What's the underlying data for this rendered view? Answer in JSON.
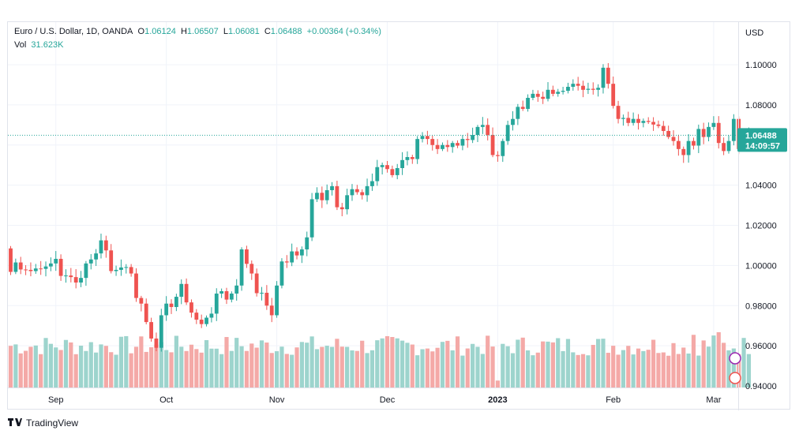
{
  "legend": {
    "symbol": "Euro / U.S. Dollar, 1D, OANDA",
    "o_label": "O",
    "o_value": "1.06124",
    "h_label": "H",
    "h_value": "1.06507",
    "l_label": "L",
    "l_value": "1.06081",
    "c_label": "C",
    "c_value": "1.06488",
    "change": "+0.00364 (+0.34%)",
    "vol_label": "Vol",
    "vol_value": "31.623K"
  },
  "price_scale": {
    "currency": "USD",
    "last_price": "1.06488",
    "countdown": "14:09:57"
  },
  "footer": {
    "brand": "TradingView"
  },
  "colors": {
    "up": "#26a69a",
    "down": "#ef5350",
    "up_vol": "#9dd4cd",
    "down_vol": "#f4a9a7",
    "grid": "#f0f3fa"
  },
  "chart_data": {
    "type": "candlestick",
    "title": "Euro / U.S. Dollar, 1D, OANDA",
    "ylabel": "USD",
    "ylim": [
      0.94,
      1.11
    ],
    "y_ticks": [
      "1.10000",
      "1.08000",
      "1.06000",
      "1.04000",
      "1.02000",
      "1.00000",
      "0.98000",
      "0.96000",
      "0.94000"
    ],
    "x_ticks": [
      {
        "label": "Sep",
        "index": 9
      },
      {
        "label": "Oct",
        "index": 31
      },
      {
        "label": "Nov",
        "index": 53
      },
      {
        "label": "Dec",
        "index": 75
      },
      {
        "label": "2023",
        "index": 97
      },
      {
        "label": "Feb",
        "index": 120
      },
      {
        "label": "Mar",
        "index": 140
      }
    ],
    "last_price": 1.06488,
    "volume_range": [
      0,
      120
    ],
    "close": [
      0.9968,
      1.0015,
      0.998,
      0.9978,
      0.9972,
      0.9985,
      0.9983,
      0.9995,
      1.001,
      1.0033,
      0.9948,
      0.995,
      0.9942,
      0.9915,
      0.9938,
      1.001,
      1.003,
      1.006,
      1.0125,
      1.0075,
      0.9972,
      0.9978,
      0.999,
      0.9992,
      0.996,
      0.9838,
      0.981,
      0.9718,
      0.9636,
      0.959,
      0.9752,
      0.981,
      0.9793,
      0.9844,
      0.9908,
      0.9816,
      0.9765,
      0.973,
      0.9708,
      0.974,
      0.976,
      0.986,
      0.9872,
      0.983,
      0.986,
      0.99,
      1.008,
      1.0008,
      0.996,
      0.9862,
      0.9864,
      0.98,
      0.9752,
      0.99,
      1.002,
      1.0015,
      1.007,
      1.005,
      1.008,
      1.014,
      1.033,
      1.0362,
      1.0325,
      1.0375,
      1.0395,
      1.029,
      1.028,
      1.035,
      1.038,
      1.0365,
      1.035,
      1.0395,
      1.042,
      1.049,
      1.05,
      1.048,
      1.045,
      1.0485,
      1.0525,
      1.054,
      1.053,
      1.063,
      1.0645,
      1.063,
      1.06,
      1.058,
      1.06,
      1.059,
      1.061,
      1.0597,
      1.063,
      1.0625,
      1.065,
      1.069,
      1.07,
      1.065,
      1.055,
      1.0545,
      1.062,
      1.07,
      1.073,
      1.079,
      1.078,
      1.0835,
      1.0855,
      1.084,
      1.083,
      1.0875,
      1.0855,
      1.0865,
      1.087,
      1.089,
      1.0905,
      1.0895,
      1.0875,
      1.088,
      1.0875,
      1.0885,
      1.0985,
      1.0905,
      1.0795,
      1.073,
      1.0735,
      1.071,
      1.073,
      1.071,
      1.072,
      1.0715,
      1.0702,
      1.0695,
      1.067,
      1.064,
      1.062,
      1.058,
      1.055,
      1.062,
      1.0597,
      1.068,
      1.064,
      1.069,
      1.071,
      1.061,
      1.057,
      1.062,
      1.073,
      1.058,
      1.0615,
      1.0648
    ]
  }
}
